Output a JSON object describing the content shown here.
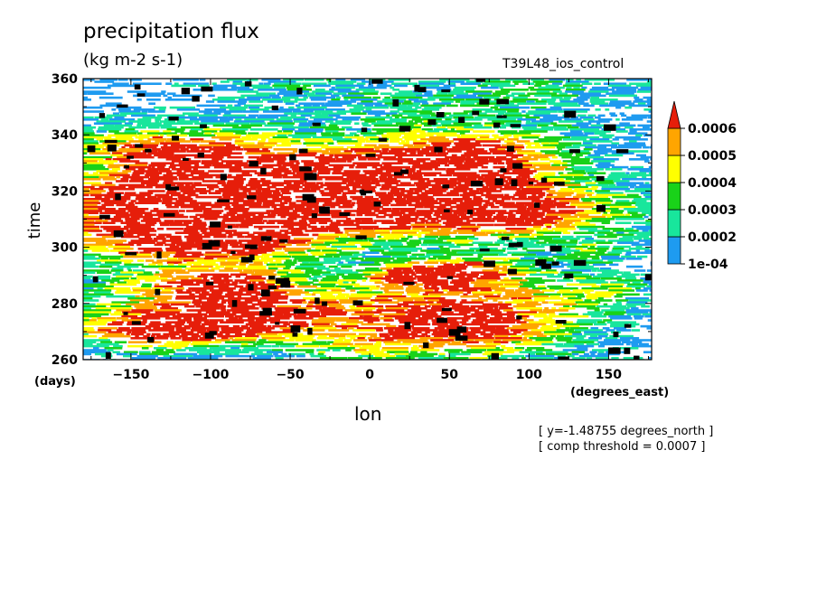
{
  "chart_data": {
    "type": "heatmap",
    "title": "precipitation flux",
    "subtitle": "(kg m-2 s-1)",
    "run_label": "T39L48_ios_control",
    "xlabel": "lon",
    "ylabel": "time",
    "x_unit": "(degrees_east)",
    "y_unit": "(days)",
    "xlim": [
      -180,
      177
    ],
    "ylim": [
      260,
      360
    ],
    "x_ticks": [
      -150,
      -100,
      -50,
      0,
      50,
      100,
      150
    ],
    "y_ticks": [
      260,
      280,
      300,
      320,
      340,
      360
    ],
    "notes": [
      "[ y=-1.48755 degrees_north ]",
      "[ comp threshold = 0.0007 ]"
    ],
    "colorbar": {
      "labels": [
        "1e-04",
        "0.0002",
        "0.0003",
        "0.0004",
        "0.0005",
        "0.0006"
      ],
      "levels": [
        0.0001,
        0.0002,
        0.0003,
        0.0004,
        0.0005,
        0.0006
      ],
      "colors": [
        "#1e9bf0",
        "#18e69c",
        "#19d219",
        "#ffff00",
        "#ffa500",
        "#e61e0a"
      ],
      "over_threshold_color": "#000000"
    }
  }
}
